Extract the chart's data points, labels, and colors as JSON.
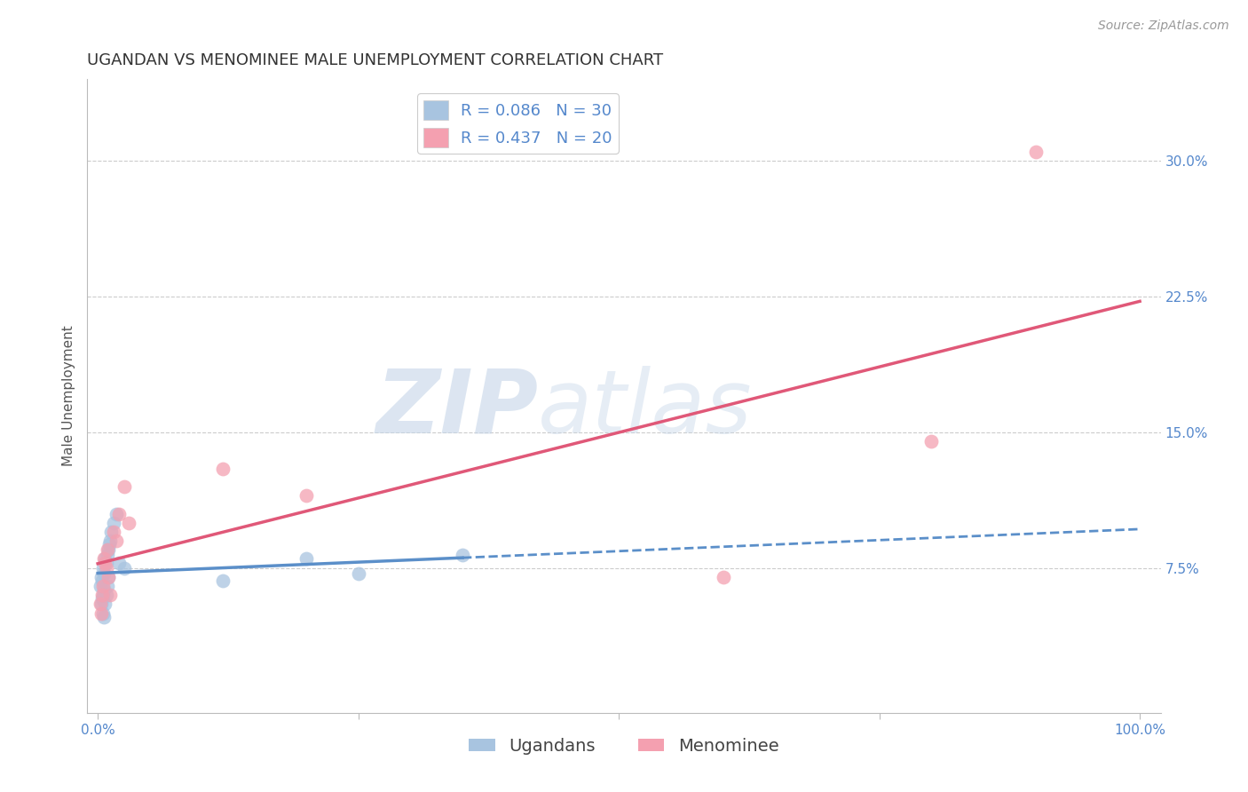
{
  "title": "UGANDAN VS MENOMINEE MALE UNEMPLOYMENT CORRELATION CHART",
  "source_text": "Source: ZipAtlas.com",
  "ylabel": "Male Unemployment",
  "xlim": [
    -0.01,
    1.02
  ],
  "ylim": [
    -0.005,
    0.345
  ],
  "ytick_positions": [
    0.075,
    0.15,
    0.225,
    0.3
  ],
  "ytick_labels": [
    "7.5%",
    "15.0%",
    "22.5%",
    "30.0%"
  ],
  "ugandan_x": [
    0.002,
    0.003,
    0.003,
    0.004,
    0.004,
    0.005,
    0.005,
    0.005,
    0.006,
    0.006,
    0.006,
    0.007,
    0.007,
    0.008,
    0.008,
    0.009,
    0.009,
    0.01,
    0.01,
    0.011,
    0.012,
    0.013,
    0.015,
    0.018,
    0.02,
    0.025,
    0.12,
    0.2,
    0.25,
    0.35
  ],
  "ugandan_y": [
    0.065,
    0.07,
    0.055,
    0.068,
    0.058,
    0.075,
    0.06,
    0.05,
    0.072,
    0.063,
    0.048,
    0.08,
    0.055,
    0.078,
    0.06,
    0.082,
    0.065,
    0.085,
    0.07,
    0.088,
    0.09,
    0.095,
    0.1,
    0.105,
    0.078,
    0.075,
    0.068,
    0.08,
    0.072,
    0.082
  ],
  "menominee_x": [
    0.002,
    0.003,
    0.004,
    0.005,
    0.006,
    0.007,
    0.008,
    0.009,
    0.01,
    0.012,
    0.015,
    0.018,
    0.02,
    0.025,
    0.03,
    0.12,
    0.2,
    0.6,
    0.8,
    0.9
  ],
  "menominee_y": [
    0.055,
    0.05,
    0.06,
    0.065,
    0.08,
    0.078,
    0.075,
    0.085,
    0.07,
    0.06,
    0.095,
    0.09,
    0.105,
    0.12,
    0.1,
    0.13,
    0.115,
    0.07,
    0.145,
    0.305
  ],
  "ugandan_color": "#a8c4e0",
  "menominee_color": "#f4a0b0",
  "ugandan_line_color": "#5b8fc9",
  "menominee_line_color": "#e05878",
  "R_ugandan": 0.086,
  "N_ugandan": 30,
  "R_menominee": 0.437,
  "N_menominee": 20,
  "legend_label_ugandan": "Ugandans",
  "legend_label_menominee": "Menominee",
  "watermark_zip": "ZIP",
  "watermark_atlas": "atlas",
  "title_fontsize": 13,
  "axis_label_fontsize": 11,
  "tick_fontsize": 11,
  "legend_fontsize": 13,
  "source_fontsize": 10,
  "background_color": "#ffffff",
  "grid_color": "#cccccc",
  "ugandan_line_x_end": 0.35,
  "menominee_line_x_start": 0.0,
  "menominee_line_x_end": 1.0
}
